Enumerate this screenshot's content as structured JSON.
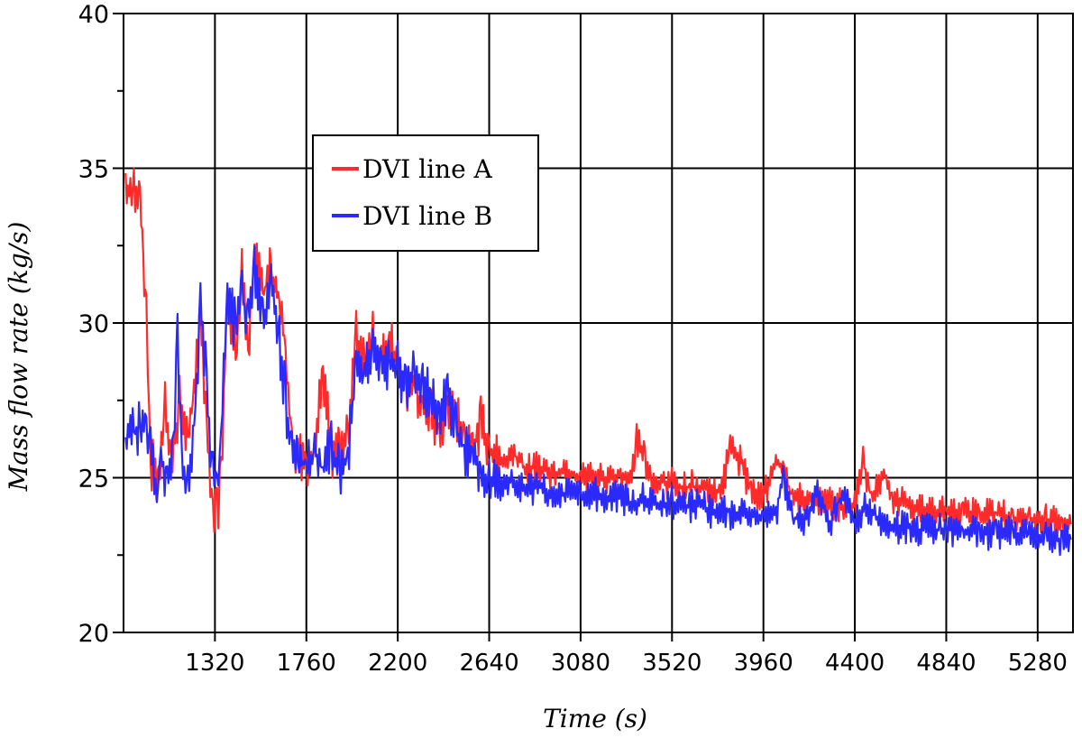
{
  "chart_data": {
    "type": "line",
    "title": "",
    "xlabel": "Time (s)",
    "ylabel": "Mass flow rate (kg/s)",
    "xlim": [
      880,
      5450
    ],
    "ylim": [
      20,
      40
    ],
    "x_ticks": [
      1320,
      1760,
      2200,
      2640,
      3080,
      3520,
      3960,
      4400,
      4840,
      5280
    ],
    "y_ticks": [
      20,
      25,
      30,
      35,
      40
    ],
    "grid": true,
    "legend_position": "upper-center",
    "series": [
      {
        "name": "DVI line A",
        "color": "#ff2a2a",
        "points": [
          [
            890,
            34.4
          ],
          [
            930,
            34.2
          ],
          [
            960,
            33.8
          ],
          [
            975,
            32.0
          ],
          [
            990,
            30.4
          ],
          [
            1010,
            25.5
          ],
          [
            1050,
            25.0
          ],
          [
            1080,
            27.2
          ],
          [
            1110,
            25.6
          ],
          [
            1150,
            27.5
          ],
          [
            1190,
            26.2
          ],
          [
            1220,
            27.8
          ],
          [
            1250,
            30.5
          ],
          [
            1280,
            26.6
          ],
          [
            1310,
            24.0
          ],
          [
            1330,
            23.8
          ],
          [
            1350,
            25.0
          ],
          [
            1380,
            30.8
          ],
          [
            1420,
            28.8
          ],
          [
            1450,
            31.5
          ],
          [
            1480,
            29.0
          ],
          [
            1510,
            32.4
          ],
          [
            1550,
            30.8
          ],
          [
            1590,
            31.8
          ],
          [
            1630,
            30.5
          ],
          [
            1660,
            29.2
          ],
          [
            1690,
            26.2
          ],
          [
            1720,
            25.6
          ],
          [
            1760,
            25.5
          ],
          [
            1800,
            25.8
          ],
          [
            1840,
            28.5
          ],
          [
            1880,
            25.8
          ],
          [
            1920,
            25.8
          ],
          [
            1960,
            26.2
          ],
          [
            2000,
            29.6
          ],
          [
            2040,
            28.8
          ],
          [
            2080,
            29.5
          ],
          [
            2120,
            28.6
          ],
          [
            2160,
            29.4
          ],
          [
            2200,
            28.7
          ],
          [
            2240,
            27.6
          ],
          [
            2280,
            28.0
          ],
          [
            2320,
            27.3
          ],
          [
            2360,
            27.0
          ],
          [
            2400,
            26.5
          ],
          [
            2440,
            27.5
          ],
          [
            2480,
            26.9
          ],
          [
            2520,
            26.2
          ],
          [
            2560,
            25.9
          ],
          [
            2600,
            26.8
          ],
          [
            2640,
            26.0
          ],
          [
            2700,
            25.4
          ],
          [
            2760,
            25.8
          ],
          [
            2820,
            25.2
          ],
          [
            2880,
            25.4
          ],
          [
            2940,
            25.1
          ],
          [
            3000,
            25.3
          ],
          [
            3080,
            25.0
          ],
          [
            3140,
            25.1
          ],
          [
            3200,
            24.9
          ],
          [
            3260,
            25.1
          ],
          [
            3320,
            24.8
          ],
          [
            3350,
            26.2
          ],
          [
            3390,
            25.6
          ],
          [
            3420,
            24.8
          ],
          [
            3480,
            24.9
          ],
          [
            3520,
            24.8
          ],
          [
            3580,
            24.7
          ],
          [
            3640,
            24.7
          ],
          [
            3700,
            24.6
          ],
          [
            3760,
            24.6
          ],
          [
            3800,
            26.0
          ],
          [
            3860,
            25.4
          ],
          [
            3900,
            24.5
          ],
          [
            3960,
            24.4
          ],
          [
            4020,
            25.6
          ],
          [
            4060,
            25.2
          ],
          [
            4100,
            24.3
          ],
          [
            4160,
            24.3
          ],
          [
            4220,
            24.2
          ],
          [
            4280,
            24.2
          ],
          [
            4340,
            24.1
          ],
          [
            4400,
            24.1
          ],
          [
            4440,
            25.6
          ],
          [
            4480,
            24.2
          ],
          [
            4540,
            25.2
          ],
          [
            4580,
            24.4
          ],
          [
            4640,
            24.1
          ],
          [
            4700,
            24.0
          ],
          [
            4760,
            24.0
          ],
          [
            4840,
            23.9
          ],
          [
            4920,
            23.9
          ],
          [
            5000,
            23.8
          ],
          [
            5080,
            23.8
          ],
          [
            5160,
            23.7
          ],
          [
            5240,
            23.7
          ],
          [
            5320,
            23.6
          ],
          [
            5400,
            23.6
          ],
          [
            5440,
            23.5
          ]
        ]
      },
      {
        "name": "DVI line B",
        "color": "#2a2aff",
        "points": [
          [
            890,
            26.3
          ],
          [
            930,
            26.4
          ],
          [
            960,
            26.6
          ],
          [
            990,
            26.7
          ],
          [
            1010,
            26.2
          ],
          [
            1040,
            24.2
          ],
          [
            1060,
            25.8
          ],
          [
            1090,
            24.6
          ],
          [
            1120,
            26.0
          ],
          [
            1140,
            29.6
          ],
          [
            1160,
            25.2
          ],
          [
            1190,
            24.6
          ],
          [
            1220,
            26.5
          ],
          [
            1250,
            30.5
          ],
          [
            1280,
            28.0
          ],
          [
            1310,
            25.0
          ],
          [
            1330,
            24.4
          ],
          [
            1350,
            26.5
          ],
          [
            1380,
            30.8
          ],
          [
            1420,
            29.8
          ],
          [
            1450,
            31.0
          ],
          [
            1480,
            30.0
          ],
          [
            1510,
            31.8
          ],
          [
            1550,
            30.0
          ],
          [
            1590,
            31.2
          ],
          [
            1630,
            29.4
          ],
          [
            1660,
            27.5
          ],
          [
            1690,
            25.8
          ],
          [
            1720,
            25.5
          ],
          [
            1760,
            25.4
          ],
          [
            1800,
            25.8
          ],
          [
            1840,
            25.2
          ],
          [
            1880,
            26.0
          ],
          [
            1920,
            25.3
          ],
          [
            1960,
            25.6
          ],
          [
            2000,
            28.6
          ],
          [
            2040,
            28.2
          ],
          [
            2080,
            29.2
          ],
          [
            2120,
            28.3
          ],
          [
            2160,
            28.8
          ],
          [
            2200,
            28.6
          ],
          [
            2240,
            27.9
          ],
          [
            2280,
            28.3
          ],
          [
            2320,
            27.8
          ],
          [
            2360,
            27.6
          ],
          [
            2400,
            27.0
          ],
          [
            2440,
            27.6
          ],
          [
            2480,
            26.6
          ],
          [
            2520,
            25.8
          ],
          [
            2560,
            25.6
          ],
          [
            2600,
            25.3
          ],
          [
            2640,
            24.9
          ],
          [
            2700,
            24.8
          ],
          [
            2760,
            24.9
          ],
          [
            2820,
            24.6
          ],
          [
            2880,
            24.7
          ],
          [
            2940,
            24.5
          ],
          [
            3000,
            24.5
          ],
          [
            3080,
            24.4
          ],
          [
            3140,
            24.5
          ],
          [
            3200,
            24.3
          ],
          [
            3260,
            24.4
          ],
          [
            3320,
            24.2
          ],
          [
            3380,
            24.3
          ],
          [
            3440,
            24.1
          ],
          [
            3520,
            24.2
          ],
          [
            3580,
            24.0
          ],
          [
            3640,
            24.2
          ],
          [
            3700,
            23.9
          ],
          [
            3760,
            24.0
          ],
          [
            3820,
            23.8
          ],
          [
            3880,
            23.9
          ],
          [
            3960,
            23.7
          ],
          [
            4020,
            23.9
          ],
          [
            4060,
            25.0
          ],
          [
            4100,
            23.7
          ],
          [
            4160,
            23.6
          ],
          [
            4220,
            24.6
          ],
          [
            4280,
            23.6
          ],
          [
            4340,
            24.5
          ],
          [
            4400,
            23.5
          ],
          [
            4460,
            24.1
          ],
          [
            4520,
            23.5
          ],
          [
            4580,
            23.4
          ],
          [
            4640,
            23.4
          ],
          [
            4700,
            23.3
          ],
          [
            4760,
            23.3
          ],
          [
            4840,
            23.3
          ],
          [
            4920,
            23.3
          ],
          [
            5000,
            23.2
          ],
          [
            5080,
            23.2
          ],
          [
            5160,
            23.2
          ],
          [
            5240,
            23.1
          ],
          [
            5320,
            23.1
          ],
          [
            5400,
            23.0
          ],
          [
            5440,
            23.0
          ]
        ]
      }
    ]
  }
}
